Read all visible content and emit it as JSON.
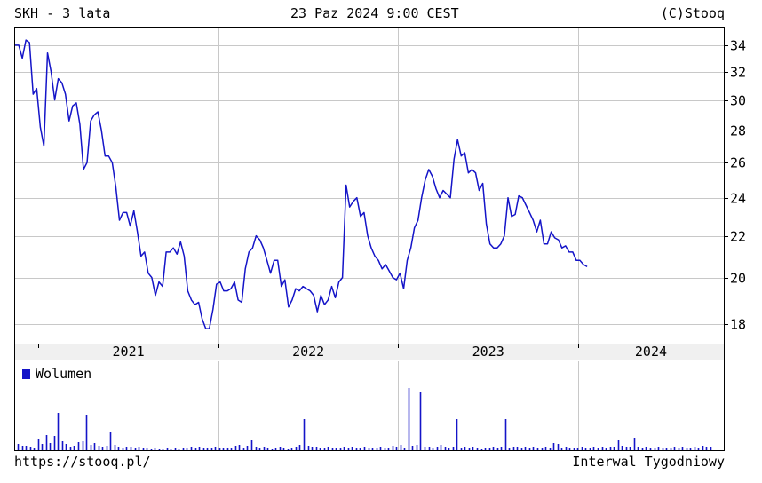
{
  "header": {
    "left": "SKH - 3 lata",
    "center": "23 Paz 2024 9:00 CEST",
    "right": "(C)Stooq"
  },
  "footer": {
    "left": "https://stooq.pl/",
    "right": "Interwal Tygodniowy"
  },
  "colors": {
    "line": "#1414c8",
    "grid": "#c8c8c8",
    "volume": "#1414c8",
    "axis_band": "#f0f0f0"
  },
  "chart_data": [
    {
      "type": "line",
      "scale": "log",
      "y_ticks": [
        18,
        20,
        22,
        24,
        26,
        28,
        30,
        32,
        34
      ],
      "ylim": [
        17.2,
        35.4
      ],
      "xlim": [
        2020.87,
        2024.81
      ],
      "x_tick_labels": [
        "2021",
        "2022",
        "2023",
        "2024"
      ],
      "x_year_starts": [
        2021.0,
        2022.0,
        2023.0,
        2024.0
      ],
      "grid": true,
      "series": [
        {
          "points": [
            [
              2020.87,
              34.0
            ],
            [
              2020.89,
              34.0
            ],
            [
              2020.91,
              33.0
            ],
            [
              2020.93,
              34.4
            ],
            [
              2020.95,
              34.2
            ],
            [
              2020.97,
              30.4
            ],
            [
              2020.99,
              30.8
            ],
            [
              2021.01,
              28.2
            ],
            [
              2021.03,
              27.0
            ],
            [
              2021.05,
              33.4
            ],
            [
              2021.07,
              32.0
            ],
            [
              2021.09,
              30.0
            ],
            [
              2021.11,
              31.5
            ],
            [
              2021.13,
              31.2
            ],
            [
              2021.15,
              30.4
            ],
            [
              2021.17,
              28.6
            ],
            [
              2021.19,
              29.6
            ],
            [
              2021.21,
              29.8
            ],
            [
              2021.23,
              28.4
            ],
            [
              2021.25,
              25.6
            ],
            [
              2021.27,
              26.0
            ],
            [
              2021.29,
              28.6
            ],
            [
              2021.31,
              29.0
            ],
            [
              2021.33,
              29.2
            ],
            [
              2021.35,
              28.0
            ],
            [
              2021.37,
              26.4
            ],
            [
              2021.39,
              26.4
            ],
            [
              2021.41,
              26.0
            ],
            [
              2021.43,
              24.6
            ],
            [
              2021.45,
              22.8
            ],
            [
              2021.47,
              23.2
            ],
            [
              2021.49,
              23.2
            ],
            [
              2021.51,
              22.5
            ],
            [
              2021.53,
              23.3
            ],
            [
              2021.55,
              22.2
            ],
            [
              2021.57,
              21.0
            ],
            [
              2021.59,
              21.2
            ],
            [
              2021.61,
              20.2
            ],
            [
              2021.63,
              20.0
            ],
            [
              2021.65,
              19.2
            ],
            [
              2021.67,
              19.8
            ],
            [
              2021.69,
              19.6
            ],
            [
              2021.71,
              21.2
            ],
            [
              2021.73,
              21.2
            ],
            [
              2021.75,
              21.4
            ],
            [
              2021.77,
              21.1
            ],
            [
              2021.79,
              21.7
            ],
            [
              2021.81,
              21.0
            ],
            [
              2021.83,
              19.4
            ],
            [
              2021.85,
              19.0
            ],
            [
              2021.87,
              18.8
            ],
            [
              2021.89,
              18.9
            ],
            [
              2021.91,
              18.2
            ],
            [
              2021.93,
              17.8
            ],
            [
              2021.95,
              17.8
            ],
            [
              2021.97,
              18.6
            ],
            [
              2021.99,
              19.7
            ],
            [
              2022.01,
              19.8
            ],
            [
              2022.03,
              19.4
            ],
            [
              2022.05,
              19.4
            ],
            [
              2022.07,
              19.5
            ],
            [
              2022.09,
              19.8
            ],
            [
              2022.11,
              19.0
            ],
            [
              2022.13,
              18.9
            ],
            [
              2022.15,
              20.4
            ],
            [
              2022.17,
              21.2
            ],
            [
              2022.19,
              21.4
            ],
            [
              2022.21,
              22.0
            ],
            [
              2022.23,
              21.8
            ],
            [
              2022.25,
              21.4
            ],
            [
              2022.27,
              20.8
            ],
            [
              2022.29,
              20.2
            ],
            [
              2022.31,
              20.8
            ],
            [
              2022.33,
              20.8
            ],
            [
              2022.35,
              19.6
            ],
            [
              2022.37,
              19.9
            ],
            [
              2022.39,
              18.7
            ],
            [
              2022.41,
              19.0
            ],
            [
              2022.43,
              19.5
            ],
            [
              2022.45,
              19.4
            ],
            [
              2022.47,
              19.6
            ],
            [
              2022.49,
              19.5
            ],
            [
              2022.51,
              19.4
            ],
            [
              2022.53,
              19.2
            ],
            [
              2022.55,
              18.5
            ],
            [
              2022.57,
              19.2
            ],
            [
              2022.59,
              18.8
            ],
            [
              2022.61,
              19.0
            ],
            [
              2022.63,
              19.6
            ],
            [
              2022.65,
              19.1
            ],
            [
              2022.67,
              19.8
            ],
            [
              2022.69,
              20.0
            ],
            [
              2022.71,
              24.7
            ],
            [
              2022.73,
              23.5
            ],
            [
              2022.75,
              23.8
            ],
            [
              2022.77,
              24.0
            ],
            [
              2022.79,
              23.0
            ],
            [
              2022.81,
              23.2
            ],
            [
              2022.83,
              22.0
            ],
            [
              2022.85,
              21.4
            ],
            [
              2022.87,
              21.0
            ],
            [
              2022.89,
              20.8
            ],
            [
              2022.91,
              20.4
            ],
            [
              2022.93,
              20.6
            ],
            [
              2022.95,
              20.3
            ],
            [
              2022.97,
              20.0
            ],
            [
              2022.99,
              19.9
            ],
            [
              2023.01,
              20.2
            ],
            [
              2023.03,
              19.5
            ],
            [
              2023.05,
              20.8
            ],
            [
              2023.07,
              21.4
            ],
            [
              2023.09,
              22.4
            ],
            [
              2023.11,
              22.8
            ],
            [
              2023.13,
              24.0
            ],
            [
              2023.15,
              25.0
            ],
            [
              2023.17,
              25.6
            ],
            [
              2023.19,
              25.2
            ],
            [
              2023.21,
              24.5
            ],
            [
              2023.23,
              24.0
            ],
            [
              2023.25,
              24.4
            ],
            [
              2023.27,
              24.2
            ],
            [
              2023.29,
              24.0
            ],
            [
              2023.31,
              26.2
            ],
            [
              2023.33,
              27.4
            ],
            [
              2023.35,
              26.4
            ],
            [
              2023.37,
              26.6
            ],
            [
              2023.39,
              25.4
            ],
            [
              2023.41,
              25.6
            ],
            [
              2023.43,
              25.4
            ],
            [
              2023.45,
              24.4
            ],
            [
              2023.47,
              24.8
            ],
            [
              2023.49,
              22.6
            ],
            [
              2023.51,
              21.6
            ],
            [
              2023.53,
              21.4
            ],
            [
              2023.55,
              21.4
            ],
            [
              2023.57,
              21.6
            ],
            [
              2023.59,
              22.0
            ],
            [
              2023.61,
              24.0
            ],
            [
              2023.63,
              23.0
            ],
            [
              2023.65,
              23.1
            ],
            [
              2023.67,
              24.1
            ],
            [
              2023.69,
              24.0
            ],
            [
              2023.71,
              23.6
            ],
            [
              2023.73,
              23.2
            ],
            [
              2023.75,
              22.8
            ],
            [
              2023.77,
              22.2
            ],
            [
              2023.79,
              22.8
            ],
            [
              2023.81,
              21.6
            ],
            [
              2023.83,
              21.6
            ],
            [
              2023.85,
              22.2
            ],
            [
              2023.87,
              21.9
            ],
            [
              2023.89,
              21.8
            ],
            [
              2023.91,
              21.4
            ],
            [
              2023.93,
              21.5
            ],
            [
              2023.95,
              21.2
            ],
            [
              2023.97,
              21.2
            ],
            [
              2023.99,
              20.8
            ],
            [
              2024.01,
              20.8
            ],
            [
              2024.03,
              20.6
            ],
            [
              2024.05,
              20.5
            ]
          ]
        }
      ]
    },
    {
      "type": "bar",
      "legend": "Wolumen",
      "values": [
        0.07,
        0.05,
        0.05,
        0.03,
        0.02,
        0.13,
        0.07,
        0.17,
        0.08,
        0.16,
        0.42,
        0.1,
        0.07,
        0.04,
        0.05,
        0.09,
        0.1,
        0.4,
        0.06,
        0.08,
        0.05,
        0.04,
        0.05,
        0.21,
        0.06,
        0.03,
        0.02,
        0.04,
        0.03,
        0.02,
        0.03,
        0.02,
        0.02,
        0.01,
        0.02,
        0.01,
        0.01,
        0.02,
        0.01,
        0.02,
        0.01,
        0.02,
        0.02,
        0.03,
        0.02,
        0.03,
        0.02,
        0.02,
        0.02,
        0.03,
        0.02,
        0.02,
        0.02,
        0.02,
        0.05,
        0.06,
        0.02,
        0.05,
        0.11,
        0.03,
        0.02,
        0.03,
        0.02,
        0.01,
        0.02,
        0.03,
        0.02,
        0.01,
        0.02,
        0.04,
        0.06,
        0.35,
        0.05,
        0.04,
        0.03,
        0.02,
        0.02,
        0.03,
        0.02,
        0.02,
        0.02,
        0.03,
        0.02,
        0.03,
        0.02,
        0.02,
        0.03,
        0.02,
        0.02,
        0.02,
        0.03,
        0.02,
        0.02,
        0.05,
        0.04,
        0.06,
        0.02,
        0.7,
        0.05,
        0.06,
        0.66,
        0.04,
        0.03,
        0.02,
        0.03,
        0.06,
        0.04,
        0.02,
        0.03,
        0.35,
        0.02,
        0.03,
        0.02,
        0.03,
        0.02,
        0.01,
        0.02,
        0.02,
        0.03,
        0.02,
        0.03,
        0.35,
        0.02,
        0.04,
        0.03,
        0.02,
        0.03,
        0.02,
        0.03,
        0.02,
        0.02,
        0.03,
        0.02,
        0.08,
        0.07,
        0.02,
        0.03,
        0.02,
        0.02,
        0.02,
        0.03,
        0.02,
        0.02,
        0.03,
        0.02,
        0.03,
        0.02,
        0.04,
        0.03,
        0.11,
        0.05,
        0.03,
        0.04,
        0.14,
        0.03,
        0.02,
        0.03,
        0.02,
        0.02,
        0.03,
        0.02,
        0.02,
        0.02,
        0.03,
        0.02,
        0.03,
        0.02,
        0.02,
        0.03,
        0.02,
        0.05,
        0.04,
        0.03
      ]
    }
  ]
}
